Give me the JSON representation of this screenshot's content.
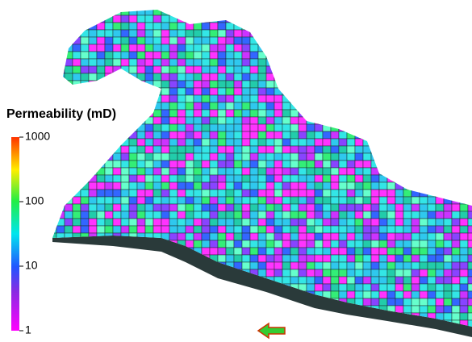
{
  "colorbar": {
    "title": "Permeability (mD)",
    "range": [
      1,
      1000
    ],
    "scale": "log",
    "ticks": [
      1,
      10,
      100,
      1000
    ]
  }
}
